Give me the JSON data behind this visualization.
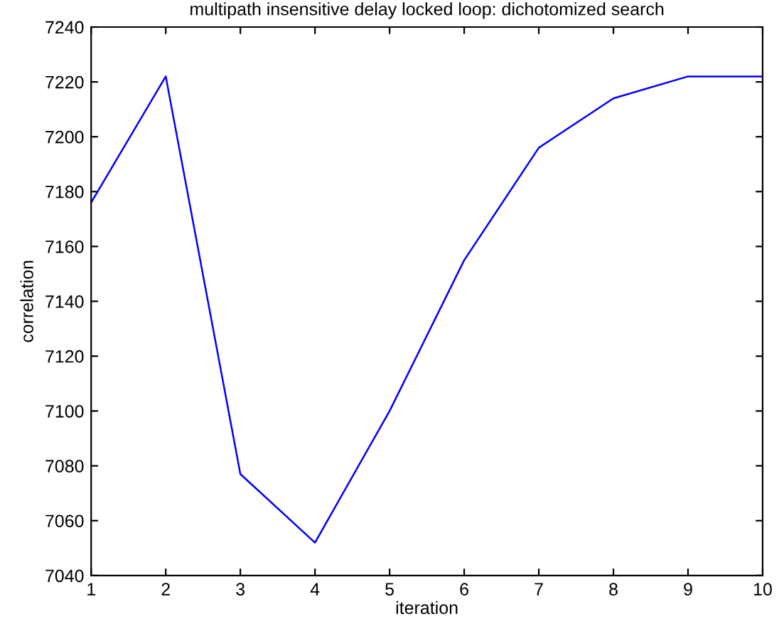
{
  "chart_data": {
    "type": "line",
    "title": "multipath insensitive delay locked loop: dichotomized search",
    "xlabel": "iteration",
    "ylabel": "correlation",
    "x": [
      1,
      2,
      3,
      4,
      5,
      6,
      7,
      8,
      9,
      10
    ],
    "series": [
      {
        "color": "#0000ff",
        "values": [
          7176,
          7222,
          7077,
          7052,
          7100,
          7155,
          7196,
          7214,
          7222,
          7222
        ]
      }
    ],
    "xlim": [
      1,
      10
    ],
    "xticks": [
      1,
      2,
      3,
      4,
      5,
      6,
      7,
      8,
      9,
      10
    ],
    "ylim": [
      7040,
      7240
    ],
    "yticks": [
      7040,
      7060,
      7080,
      7100,
      7120,
      7140,
      7160,
      7180,
      7200,
      7220,
      7240
    ],
    "grid": false,
    "marker": "none",
    "line_style": "solid"
  }
}
